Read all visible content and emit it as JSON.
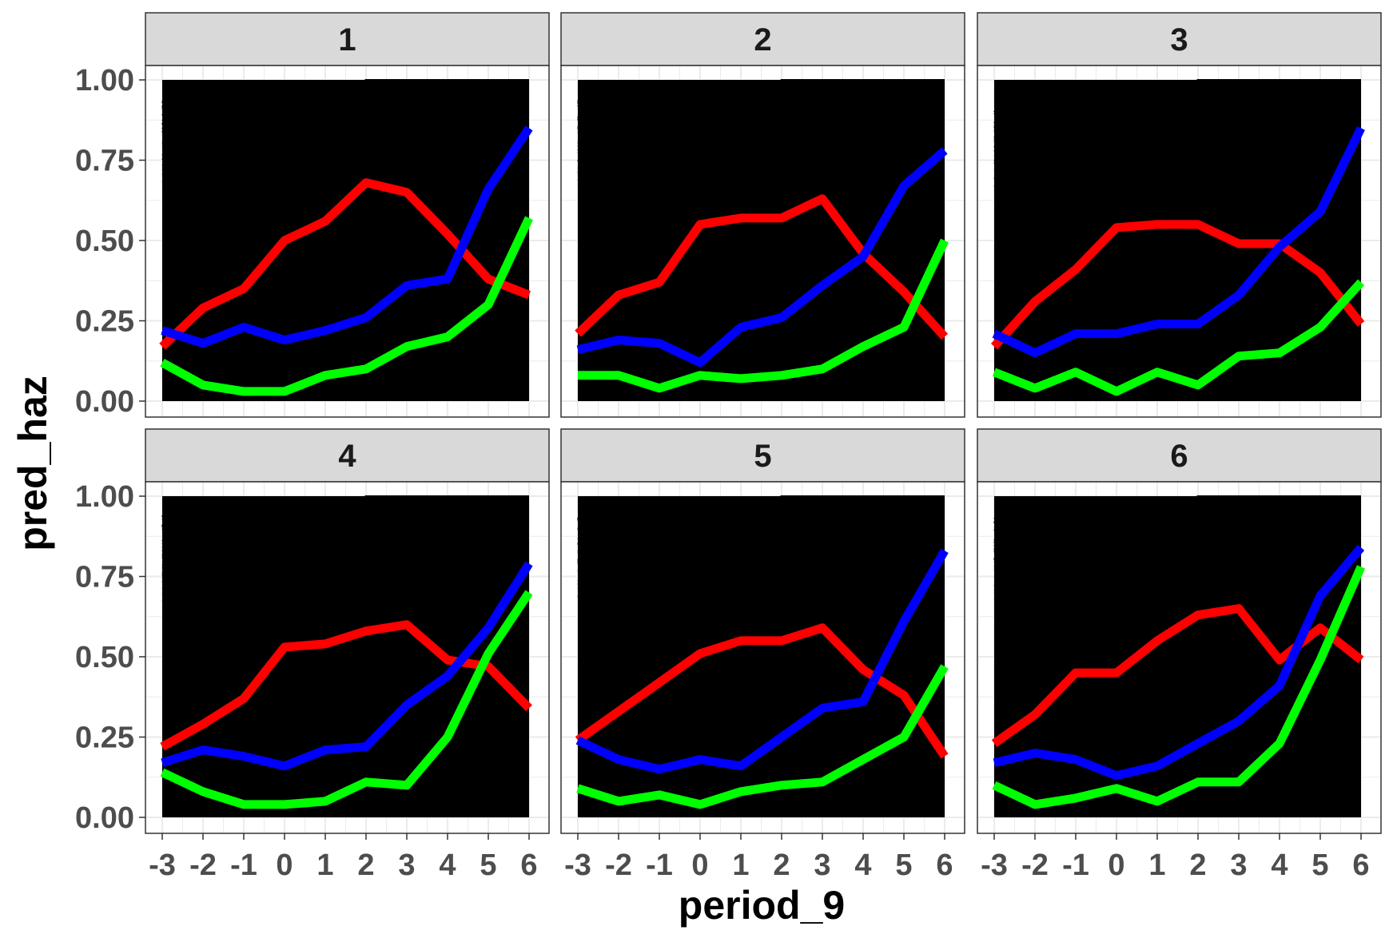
{
  "chart_data": {
    "type": "line",
    "facet_layout": "2 rows x 3 columns",
    "xlabel": "period_9",
    "ylabel": "pred_haz",
    "x": [
      -3,
      -2,
      -1,
      0,
      1,
      2,
      3,
      4,
      5,
      6
    ],
    "x_tick_labels": [
      "-3",
      "-2",
      "-1",
      "0",
      "1",
      "2",
      "3",
      "4",
      "5",
      "6"
    ],
    "xlim": [
      -3,
      6
    ],
    "y_ticks": [
      0,
      0.25,
      0.5,
      0.75,
      1
    ],
    "y_tick_labels": [
      "0.00",
      "0.25",
      "0.50",
      "0.75",
      "1.00"
    ],
    "ylim": [
      0,
      1
    ],
    "grid": true,
    "legend": "none",
    "background_note": "thousands of thin black individual lines fill the 0-1 range in every panel",
    "colors": {
      "red": "#ff0000",
      "blue": "#0000ff",
      "green": "#00ff00",
      "individual": "#000000",
      "strip": "#d9d9d9"
    },
    "panels": [
      {
        "label": "1",
        "series": [
          {
            "color": "#ff0000",
            "values": [
              0.17,
              0.29,
              0.35,
              0.5,
              0.56,
              0.68,
              0.65,
              0.52,
              0.38,
              0.33
            ]
          },
          {
            "color": "#0000ff",
            "values": [
              0.22,
              0.18,
              0.23,
              0.19,
              0.22,
              0.26,
              0.36,
              0.38,
              0.66,
              0.85
            ]
          },
          {
            "color": "#00ff00",
            "values": [
              0.12,
              0.05,
              0.03,
              0.03,
              0.08,
              0.1,
              0.17,
              0.2,
              0.3,
              0.57
            ]
          }
        ]
      },
      {
        "label": "2",
        "series": [
          {
            "color": "#ff0000",
            "values": [
              0.21,
              0.33,
              0.37,
              0.55,
              0.57,
              0.57,
              0.63,
              0.46,
              0.34,
              0.2
            ]
          },
          {
            "color": "#0000ff",
            "values": [
              0.16,
              0.19,
              0.18,
              0.12,
              0.23,
              0.26,
              0.36,
              0.45,
              0.67,
              0.78
            ]
          },
          {
            "color": "#00ff00",
            "values": [
              0.08,
              0.08,
              0.04,
              0.08,
              0.07,
              0.08,
              0.1,
              0.17,
              0.23,
              0.5
            ]
          }
        ]
      },
      {
        "label": "3",
        "series": [
          {
            "color": "#ff0000",
            "values": [
              0.17,
              0.31,
              0.41,
              0.54,
              0.55,
              0.55,
              0.49,
              0.49,
              0.4,
              0.24
            ]
          },
          {
            "color": "#0000ff",
            "values": [
              0.21,
              0.15,
              0.21,
              0.21,
              0.24,
              0.24,
              0.33,
              0.48,
              0.59,
              0.85
            ]
          },
          {
            "color": "#00ff00",
            "values": [
              0.09,
              0.04,
              0.09,
              0.03,
              0.09,
              0.05,
              0.14,
              0.15,
              0.23,
              0.37
            ]
          }
        ]
      },
      {
        "label": "4",
        "series": [
          {
            "color": "#ff0000",
            "values": [
              0.22,
              0.29,
              0.37,
              0.53,
              0.54,
              0.58,
              0.6,
              0.49,
              0.47,
              0.34
            ]
          },
          {
            "color": "#0000ff",
            "values": [
              0.17,
              0.21,
              0.19,
              0.16,
              0.21,
              0.22,
              0.35,
              0.44,
              0.59,
              0.79
            ]
          },
          {
            "color": "#00ff00",
            "values": [
              0.14,
              0.08,
              0.04,
              0.04,
              0.05,
              0.11,
              0.1,
              0.25,
              0.51,
              0.7
            ]
          }
        ]
      },
      {
        "label": "5",
        "series": [
          {
            "color": "#ff0000",
            "values": [
              0.24,
              0.33,
              0.42,
              0.51,
              0.55,
              0.55,
              0.59,
              0.46,
              0.38,
              0.19
            ]
          },
          {
            "color": "#0000ff",
            "values": [
              0.24,
              0.18,
              0.15,
              0.18,
              0.16,
              0.25,
              0.34,
              0.36,
              0.61,
              0.83
            ]
          },
          {
            "color": "#00ff00",
            "values": [
              0.09,
              0.05,
              0.07,
              0.04,
              0.08,
              0.1,
              0.11,
              0.18,
              0.25,
              0.47
            ]
          }
        ]
      },
      {
        "label": "6",
        "series": [
          {
            "color": "#ff0000",
            "values": [
              0.23,
              0.32,
              0.45,
              0.45,
              0.55,
              0.63,
              0.65,
              0.49,
              0.59,
              0.49
            ]
          },
          {
            "color": "#0000ff",
            "values": [
              0.17,
              0.2,
              0.18,
              0.13,
              0.16,
              0.23,
              0.3,
              0.41,
              0.69,
              0.84
            ]
          },
          {
            "color": "#00ff00",
            "values": [
              0.1,
              0.04,
              0.06,
              0.09,
              0.05,
              0.11,
              0.11,
              0.23,
              0.49,
              0.78
            ]
          }
        ]
      }
    ]
  }
}
